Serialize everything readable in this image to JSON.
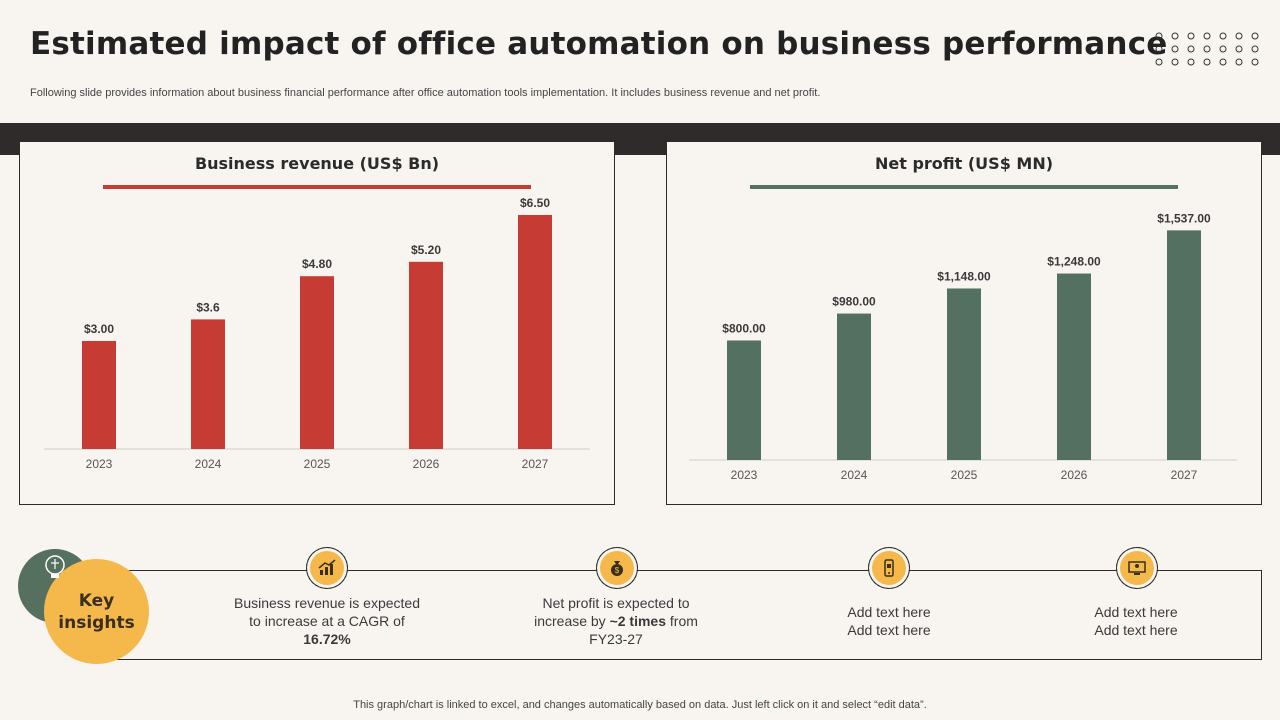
{
  "header": {
    "title": "Estimated impact of office automation on business performance",
    "subtitle": "Following slide provides information about business financial performance after office automation tools implementation. It includes business revenue and net profit."
  },
  "colors": {
    "revenue": "#c63b33",
    "profit": "#547060",
    "accent": "#f5b84a",
    "dark": "#2e2b2a"
  },
  "chart_data": [
    {
      "type": "bar",
      "title": "Business revenue (US$ Bn)",
      "categories": [
        "2023",
        "2024",
        "2025",
        "2026",
        "2027"
      ],
      "values": [
        3.0,
        3.6,
        4.8,
        5.2,
        6.5
      ],
      "labels": [
        "$3.00",
        "$3.6",
        "$4.80",
        "$5.20",
        "$6.50"
      ],
      "xlabel": "",
      "ylabel": "",
      "ylim": [
        0,
        7
      ],
      "grid": false
    },
    {
      "type": "bar",
      "title": "Net profit (US$ MN)",
      "categories": [
        "2023",
        "2024",
        "2025",
        "2026",
        "2027"
      ],
      "values": [
        800,
        980,
        1148,
        1248,
        1537
      ],
      "labels": [
        "$800.00",
        "$980.00",
        "$1,148.00",
        "$1,248.00",
        "$1,537.00"
      ],
      "xlabel": "",
      "ylabel": "",
      "ylim": [
        0,
        1700
      ],
      "grid": false
    }
  ],
  "insights": {
    "heading_line1": "Key",
    "heading_line2": "insights",
    "items": [
      {
        "icon": "revenue-growth-icon",
        "pre": "Business revenue is expected to increase at a CAGR of ",
        "bold": "16.72%",
        "post": ""
      },
      {
        "icon": "money-bag-icon",
        "pre": "Net profit is expected to increase by ",
        "bold": "~2 times",
        "post": " from FY23-27"
      },
      {
        "icon": "mobile-device-icon",
        "pre": "Add text here Add text here",
        "bold": "",
        "post": ""
      },
      {
        "icon": "computer-user-icon",
        "pre": "Add text here Add text here",
        "bold": "",
        "post": ""
      }
    ]
  },
  "footer": "This graph/chart is linked to excel,  and changes automatically based on data. Just left click on it and select “edit data”."
}
